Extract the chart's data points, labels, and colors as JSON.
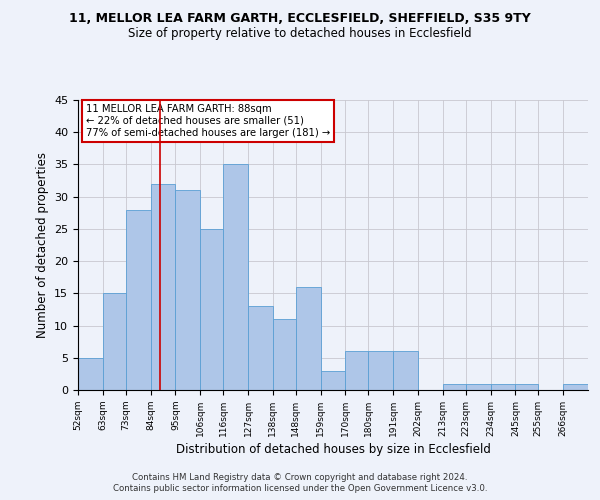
{
  "title_line1": "11, MELLOR LEA FARM GARTH, ECCLESFIELD, SHEFFIELD, S35 9TY",
  "title_line2": "Size of property relative to detached houses in Ecclesfield",
  "xlabel": "Distribution of detached houses by size in Ecclesfield",
  "ylabel": "Number of detached properties",
  "bins": [
    52,
    63,
    73,
    84,
    95,
    106,
    116,
    127,
    138,
    148,
    159,
    170,
    180,
    191,
    202,
    213,
    223,
    234,
    245,
    255,
    266
  ],
  "counts": [
    5,
    15,
    28,
    32,
    31,
    25,
    35,
    13,
    11,
    16,
    3,
    6,
    6,
    6,
    0,
    1,
    1,
    1,
    1,
    0,
    1
  ],
  "property_size": 88,
  "bar_color": "#aec6e8",
  "bar_edge_color": "#5a9fd4",
  "annotation_box_color": "#ffffff",
  "annotation_box_edge": "#cc0000",
  "vline_color": "#cc0000",
  "annotation_text_line1": "11 MELLOR LEA FARM GARTH: 88sqm",
  "annotation_text_line2": "← 22% of detached houses are smaller (51)",
  "annotation_text_line3": "77% of semi-detached houses are larger (181) →",
  "ylim": [
    0,
    45
  ],
  "yticks": [
    0,
    5,
    10,
    15,
    20,
    25,
    30,
    35,
    40,
    45
  ],
  "footer_line1": "Contains HM Land Registry data © Crown copyright and database right 2024.",
  "footer_line2": "Contains public sector information licensed under the Open Government Licence v3.0.",
  "bg_color": "#eef2fa",
  "plot_bg_color": "#eef2fa",
  "grid_color": "#c8c8d0"
}
